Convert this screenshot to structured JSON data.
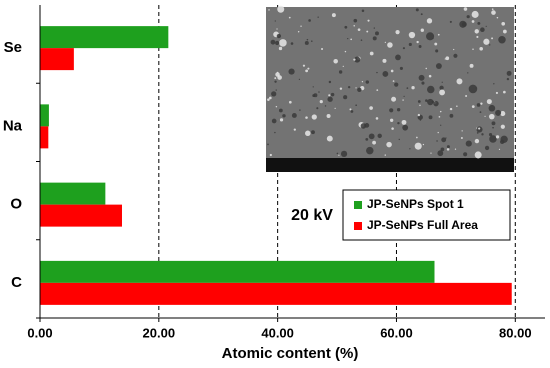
{
  "chart_data": {
    "type": "hbar",
    "categories": [
      "Se",
      "Na",
      "O",
      "C"
    ],
    "series": [
      {
        "name": "JP-SeNPs Spot 1",
        "color": "#1ea01e",
        "values": [
          21.6,
          1.5,
          11.0,
          66.4
        ]
      },
      {
        "name": "JP-SeNPs Full Area",
        "color": "#ff0000",
        "values": [
          5.7,
          1.4,
          13.8,
          79.4
        ]
      }
    ],
    "xlim": [
      0,
      85
    ],
    "xticks": [
      {
        "value": 0,
        "label": "0.00"
      },
      {
        "value": 20,
        "label": "20.00"
      },
      {
        "value": 40,
        "label": "40.00"
      },
      {
        "value": 60,
        "label": "60.00"
      },
      {
        "value": 80,
        "label": "80.00"
      }
    ],
    "xlabel": "Atomic content (%)",
    "annotation": "20 kV",
    "grid": true
  }
}
